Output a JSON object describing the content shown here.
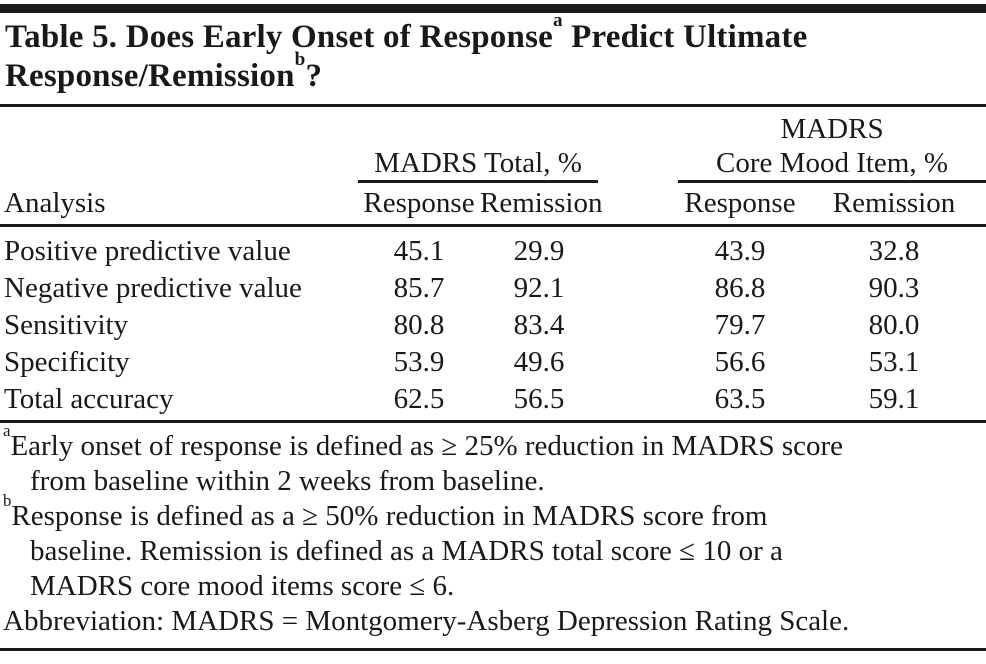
{
  "title": {
    "line1_text": "Table 5. Does Early Onset of Response",
    "line1_sup": "a",
    "line1_tail": " Predict Ultimate",
    "line2_text": "Response/Remission",
    "line2_sup": "b",
    "line2_tail": "?"
  },
  "table": {
    "analysis_header": "Analysis",
    "groups": [
      {
        "lines": [
          "MADRS Total, %"
        ],
        "subcols": [
          "Response",
          "Remission"
        ]
      },
      {
        "lines": [
          "MADRS",
          "Core Mood Item, %"
        ],
        "subcols": [
          "Response",
          "Remission"
        ]
      }
    ],
    "rows": [
      {
        "label": "Positive predictive value",
        "values": [
          "45.1",
          "29.9",
          "43.9",
          "32.8"
        ]
      },
      {
        "label": "Negative predictive value",
        "values": [
          "85.7",
          "92.1",
          "86.8",
          "90.3"
        ]
      },
      {
        "label": "Sensitivity",
        "values": [
          "80.8",
          "83.4",
          "79.7",
          "80.0"
        ]
      },
      {
        "label": "Specificity",
        "values": [
          "53.9",
          "49.6",
          "56.6",
          "53.1"
        ]
      },
      {
        "label": "Total accuracy",
        "values": [
          "62.5",
          "56.5",
          "63.5",
          "59.1"
        ]
      }
    ]
  },
  "footnotes": [
    {
      "marker": "a",
      "lines": [
        "Early onset of response is defined as ≥ 25% reduction in MADRS score",
        "from baseline within 2 weeks from baseline."
      ]
    },
    {
      "marker": "b",
      "lines": [
        "Response is defined as a ≥ 50% reduction in MADRS score from",
        "baseline. Remission is defined as a MADRS total score ≤ 10 or a",
        "MADRS core mood items score ≤ 6."
      ]
    },
    {
      "marker": "",
      "lines": [
        "Abbreviation: MADRS = Montgomery-Asberg Depression Rating Scale."
      ]
    }
  ],
  "colors": {
    "ink": "#191919",
    "rule": "#1a1a1a",
    "background": "#ffffff"
  }
}
